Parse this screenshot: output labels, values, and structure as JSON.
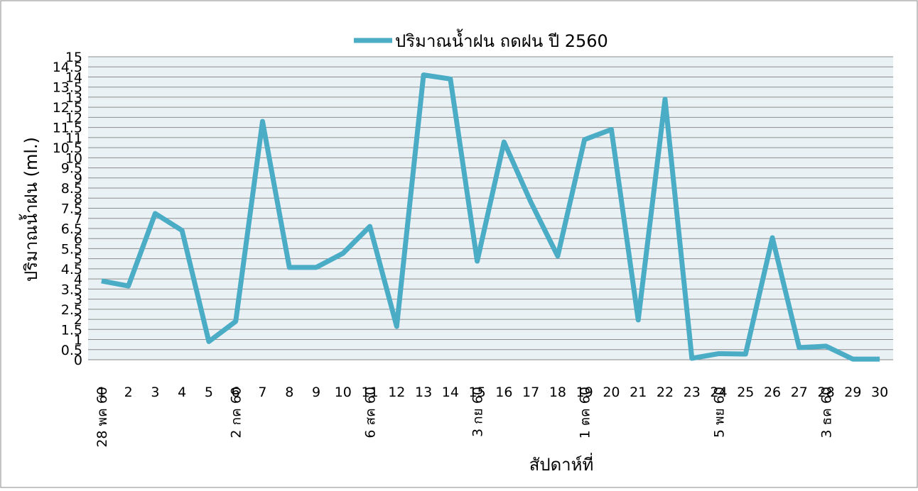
{
  "chart_data": {
    "type": "line",
    "x_label": "สัปดาห์ที่",
    "y_label": "ปริมาณน้ำฝน (ml.)",
    "categories": [
      1,
      2,
      3,
      4,
      5,
      6,
      7,
      8,
      9,
      10,
      11,
      12,
      13,
      14,
      15,
      16,
      17,
      18,
      19,
      20,
      21,
      22,
      23,
      24,
      25,
      26,
      27,
      28,
      29,
      30
    ],
    "date_labels": [
      "28 พค 60",
      null,
      null,
      null,
      null,
      "2 กค 60",
      null,
      null,
      null,
      null,
      "6 สค 60",
      null,
      null,
      null,
      "3 กย 60",
      null,
      null,
      null,
      "1 ตค 60",
      null,
      null,
      null,
      null,
      "5 พย 60",
      null,
      null,
      null,
      "3 ธค 60",
      null,
      null
    ],
    "series": [
      {
        "name": "ปริมาณน้ำฝน ถดฝน ปี 2560",
        "color": "#4bacc6",
        "values": [
          3.9,
          3.65,
          7.24,
          6.4,
          0.9,
          1.9,
          11.8,
          4.57,
          4.57,
          5.27,
          6.6,
          1.65,
          14.1,
          13.9,
          4.88,
          10.78,
          7.8,
          5.13,
          10.9,
          11.4,
          1.97,
          12.9,
          0.07,
          0.3,
          0.28,
          6.04,
          0.6,
          0.67,
          0.03,
          0.03
        ]
      }
    ],
    "ylim": [
      0,
      15
    ],
    "yticks": [
      0,
      0.5,
      1,
      1.5,
      2,
      2.5,
      3,
      3.5,
      4,
      4.5,
      5,
      5.5,
      6,
      6.5,
      7,
      7.5,
      8,
      8.5,
      9,
      9.5,
      10,
      10.5,
      11,
      11.5,
      12,
      12.5,
      13,
      13.5,
      14,
      14.5,
      15
    ],
    "grid": true,
    "legend": "top"
  }
}
